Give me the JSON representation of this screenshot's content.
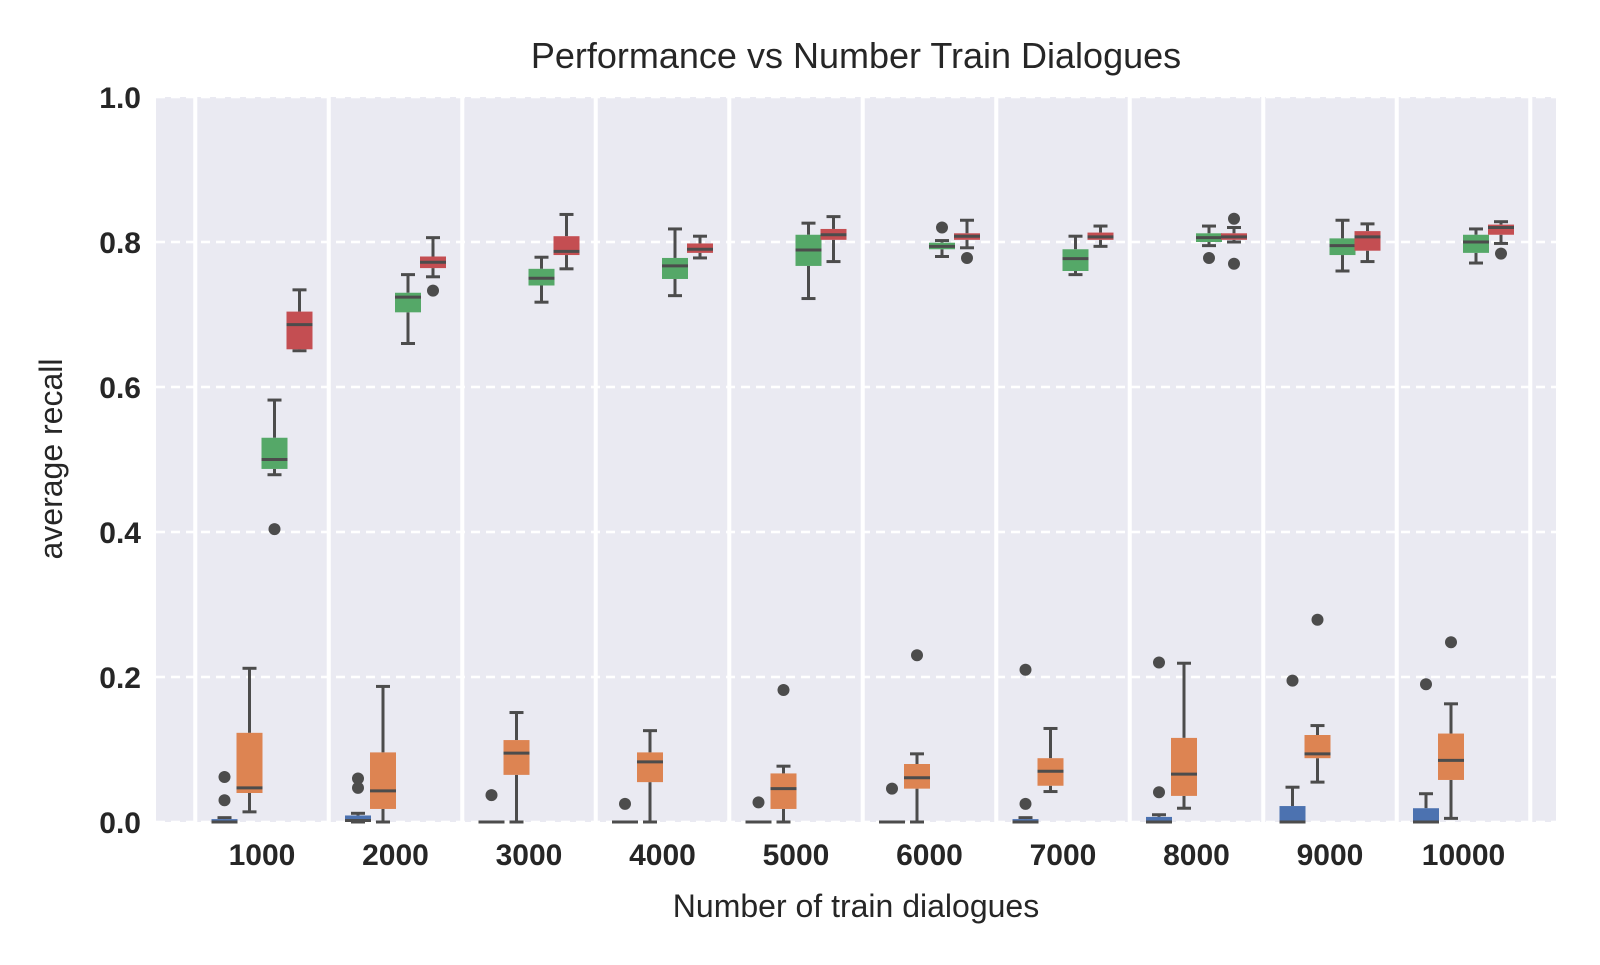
{
  "chart_data": {
    "type": "box",
    "title": "Performance vs Number Train Dialogues",
    "xlabel": "Number of train dialogues",
    "ylabel": "average recall",
    "ylim": [
      0,
      1.0
    ],
    "yticks": [
      "0.0",
      "0.2",
      "0.4",
      "0.6",
      "0.8",
      "1.0"
    ],
    "categories": [
      "1000",
      "2000",
      "3000",
      "4000",
      "5000",
      "6000",
      "7000",
      "8000",
      "9000",
      "10000"
    ],
    "grid": "horizontal dashed",
    "legend": "none",
    "series": [
      {
        "color": "#4c72b0",
        "boxes": [
          {
            "whislo": 0,
            "q1": 0,
            "med": 0,
            "q3": 0.004,
            "whishi": 0.006,
            "fliers": [
              0.062,
              0.03
            ]
          },
          {
            "whislo": 0,
            "q1": 0,
            "med": 0.002,
            "q3": 0.009,
            "whishi": 0.012,
            "fliers": [
              0.06,
              0.047
            ]
          },
          {
            "whislo": 0,
            "q1": 0,
            "med": 0,
            "q3": 0,
            "whishi": 0,
            "fliers": [
              0.037
            ]
          },
          {
            "whislo": 0,
            "q1": 0,
            "med": 0,
            "q3": 0,
            "whishi": 0,
            "fliers": [
              0.025
            ]
          },
          {
            "whislo": 0,
            "q1": 0,
            "med": 0,
            "q3": 0,
            "whishi": 0,
            "fliers": [
              0.027
            ]
          },
          {
            "whislo": 0,
            "q1": 0,
            "med": 0,
            "q3": 0,
            "whishi": 0,
            "fliers": [
              0.046
            ]
          },
          {
            "whislo": 0,
            "q1": 0,
            "med": 0,
            "q3": 0.004,
            "whishi": 0.006,
            "fliers": [
              0.21,
              0.025
            ]
          },
          {
            "whislo": 0,
            "q1": 0,
            "med": 0,
            "q3": 0.007,
            "whishi": 0.01,
            "fliers": [
              0.22,
              0.041
            ]
          },
          {
            "whislo": 0,
            "q1": 0,
            "med": 0,
            "q3": 0.022,
            "whishi": 0.048,
            "fliers": [
              0.195
            ]
          },
          {
            "whislo": 0,
            "q1": 0,
            "med": 0,
            "q3": 0.019,
            "whishi": 0.039,
            "fliers": [
              0.19
            ]
          }
        ]
      },
      {
        "color": "#dd8452",
        "boxes": [
          {
            "whislo": 0.014,
            "q1": 0.04,
            "med": 0.047,
            "q3": 0.123,
            "whishi": 0.212,
            "fliers": []
          },
          {
            "whislo": 0,
            "q1": 0.018,
            "med": 0.043,
            "q3": 0.096,
            "whishi": 0.187,
            "fliers": []
          },
          {
            "whislo": 0,
            "q1": 0.065,
            "med": 0.095,
            "q3": 0.113,
            "whishi": 0.151,
            "fliers": []
          },
          {
            "whislo": 0,
            "q1": 0.055,
            "med": 0.083,
            "q3": 0.096,
            "whishi": 0.126,
            "fliers": []
          },
          {
            "whislo": 0,
            "q1": 0.018,
            "med": 0.046,
            "q3": 0.067,
            "whishi": 0.077,
            "fliers": [
              0.182
            ]
          },
          {
            "whislo": 0,
            "q1": 0.046,
            "med": 0.061,
            "q3": 0.08,
            "whishi": 0.094,
            "fliers": [
              0.23
            ]
          },
          {
            "whislo": 0.042,
            "q1": 0.05,
            "med": 0.07,
            "q3": 0.088,
            "whishi": 0.129,
            "fliers": []
          },
          {
            "whislo": 0.019,
            "q1": 0.036,
            "med": 0.066,
            "q3": 0.116,
            "whishi": 0.219,
            "fliers": []
          },
          {
            "whislo": 0.055,
            "q1": 0.088,
            "med": 0.094,
            "q3": 0.12,
            "whishi": 0.133,
            "fliers": [
              0.279
            ]
          },
          {
            "whislo": 0.005,
            "q1": 0.058,
            "med": 0.085,
            "q3": 0.122,
            "whishi": 0.163,
            "fliers": [
              0.248
            ]
          }
        ]
      },
      {
        "color": "#55a868",
        "boxes": [
          {
            "whislo": 0.479,
            "q1": 0.487,
            "med": 0.5,
            "q3": 0.53,
            "whishi": 0.582,
            "fliers": [
              0.404
            ]
          },
          {
            "whislo": 0.66,
            "q1": 0.703,
            "med": 0.724,
            "q3": 0.73,
            "whishi": 0.755,
            "fliers": []
          },
          {
            "whislo": 0.717,
            "q1": 0.74,
            "med": 0.75,
            "q3": 0.763,
            "whishi": 0.779,
            "fliers": []
          },
          {
            "whislo": 0.726,
            "q1": 0.749,
            "med": 0.767,
            "q3": 0.778,
            "whishi": 0.818,
            "fliers": []
          },
          {
            "whislo": 0.722,
            "q1": 0.767,
            "med": 0.789,
            "q3": 0.81,
            "whishi": 0.826,
            "fliers": []
          },
          {
            "whislo": 0.78,
            "q1": 0.79,
            "med": 0.794,
            "q3": 0.799,
            "whishi": 0.802,
            "fliers": [
              0.82
            ]
          },
          {
            "whislo": 0.755,
            "q1": 0.76,
            "med": 0.777,
            "q3": 0.79,
            "whishi": 0.808,
            "fliers": []
          },
          {
            "whislo": 0.795,
            "q1": 0.8,
            "med": 0.806,
            "q3": 0.812,
            "whishi": 0.822,
            "fliers": [
              0.778
            ]
          },
          {
            "whislo": 0.76,
            "q1": 0.782,
            "med": 0.795,
            "q3": 0.805,
            "whishi": 0.83,
            "fliers": []
          },
          {
            "whislo": 0.771,
            "q1": 0.785,
            "med": 0.8,
            "q3": 0.81,
            "whishi": 0.818,
            "fliers": []
          }
        ]
      },
      {
        "color": "#c44e52",
        "boxes": [
          {
            "whislo": 0.65,
            "q1": 0.652,
            "med": 0.686,
            "q3": 0.704,
            "whishi": 0.734,
            "fliers": []
          },
          {
            "whislo": 0.752,
            "q1": 0.764,
            "med": 0.772,
            "q3": 0.78,
            "whishi": 0.806,
            "fliers": [
              0.733
            ]
          },
          {
            "whislo": 0.763,
            "q1": 0.782,
            "med": 0.787,
            "q3": 0.808,
            "whishi": 0.838,
            "fliers": []
          },
          {
            "whislo": 0.778,
            "q1": 0.785,
            "med": 0.79,
            "q3": 0.798,
            "whishi": 0.808,
            "fliers": []
          },
          {
            "whislo": 0.773,
            "q1": 0.803,
            "med": 0.81,
            "q3": 0.818,
            "whishi": 0.835,
            "fliers": []
          },
          {
            "whislo": 0.792,
            "q1": 0.803,
            "med": 0.808,
            "q3": 0.812,
            "whishi": 0.83,
            "fliers": [
              0.778
            ]
          },
          {
            "whislo": 0.794,
            "q1": 0.803,
            "med": 0.807,
            "q3": 0.813,
            "whishi": 0.822,
            "fliers": []
          },
          {
            "whislo": 0.8,
            "q1": 0.803,
            "med": 0.807,
            "q3": 0.812,
            "whishi": 0.82,
            "fliers": [
              0.832,
              0.77
            ]
          },
          {
            "whislo": 0.773,
            "q1": 0.788,
            "med": 0.807,
            "q3": 0.815,
            "whishi": 0.825,
            "fliers": []
          },
          {
            "whislo": 0.798,
            "q1": 0.81,
            "med": 0.82,
            "q3": 0.824,
            "whishi": 0.828,
            "fliers": [
              0.784
            ]
          }
        ]
      }
    ]
  }
}
